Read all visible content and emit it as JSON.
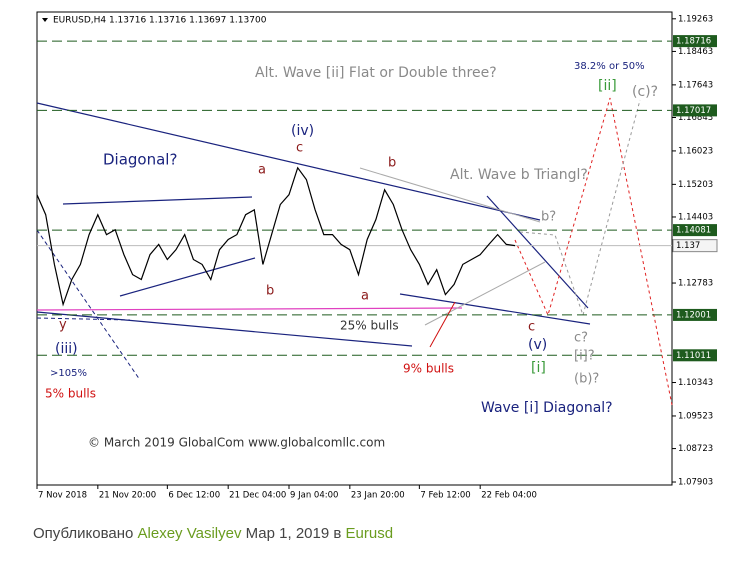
{
  "chart_data": {
    "type": "line",
    "title": "EURUSD,H4  1.13716 1.13716 1.13697 1.13700",
    "color": "#000000",
    "categories": [
      "7 Nov 2018",
      null,
      null,
      null,
      null,
      null,
      null,
      "21 Nov 20:00",
      null,
      null,
      null,
      null,
      null,
      null,
      null,
      "6 Dec 12:00",
      null,
      null,
      null,
      null,
      null,
      null,
      "21 Dec 04:00",
      null,
      null,
      null,
      null,
      null,
      null,
      "9 Jan 04:00",
      null,
      null,
      null,
      null,
      null,
      null,
      "23 Jan 20:00",
      null,
      null,
      null,
      null,
      null,
      null,
      null,
      "7 Feb 12:00",
      null,
      null,
      null,
      null,
      null,
      null,
      "22 Feb 04:00",
      null,
      null,
      null,
      null
    ],
    "values": [
      1.1495,
      1.1446,
      1.1324,
      1.1226,
      1.1287,
      1.1324,
      1.1397,
      1.1446,
      1.1397,
      1.1409,
      1.1348,
      1.1299,
      1.1287,
      1.1348,
      1.1373,
      1.1336,
      1.136,
      1.1397,
      1.1336,
      1.1324,
      1.1287,
      1.136,
      1.1385,
      1.1397,
      1.1446,
      1.1458,
      1.1324,
      1.1397,
      1.1471,
      1.1495,
      1.1561,
      1.1532,
      1.1458,
      1.1397,
      1.1397,
      1.1373,
      1.136,
      1.1299,
      1.1385,
      1.1434,
      1.1507,
      1.1471,
      1.1409,
      1.136,
      1.1324,
      1.1275,
      1.1311,
      1.125,
      1.1275,
      1.1324,
      1.1336,
      1.1348,
      1.1373,
      1.1397,
      1.1373,
      1.137
    ],
    "ylim": [
      1.0783,
      1.1943
    ],
    "yticks": [
      1.19263,
      1.18463,
      1.17643,
      1.16843,
      1.16023,
      1.15203,
      1.14403,
      1.12783,
      1.10343,
      1.09523,
      1.08723,
      1.07903
    ],
    "levels": [
      1.18716,
      1.17017,
      1.14081,
      1.12001,
      1.11011
    ],
    "level_color": "#1e5b1e",
    "last_price": 1.137,
    "annotations": [
      {
        "text": "Alt. Wave [ii] Flat or Double three?",
        "color": "#8a8a8a"
      },
      {
        "text": "38.2% or 50%",
        "color": "#1a237e"
      },
      {
        "text": "[ii]",
        "color": "#3a9a3a"
      },
      {
        "text": "(c)?",
        "color": "#8a8a8a"
      },
      {
        "text": "Diagonal?",
        "color": "#1a237e"
      },
      {
        "text": "(iv)",
        "color": "#1a237e"
      },
      {
        "text": "c",
        "color": "#8b1a1a"
      },
      {
        "text": "a",
        "color": "#8b1a1a"
      },
      {
        "text": "b",
        "color": "#8b1a1a"
      },
      {
        "text": "Alt. Wave b Triangl?",
        "color": "#8a8a8a"
      },
      {
        "text": "b?",
        "color": "#8a8a8a"
      },
      {
        "text": "b",
        "color": "#8b1a1a"
      },
      {
        "text": "a",
        "color": "#8b1a1a"
      },
      {
        "text": "25% bulls",
        "color": "#333333"
      },
      {
        "text": "y",
        "color": "#8b1a1a"
      },
      {
        "text": "(iii)",
        "color": "#1a237e"
      },
      {
        "text": ">105%",
        "color": "#1a237e"
      },
      {
        "text": "5% bulls",
        "color": "#d01010"
      },
      {
        "text": "9% bulls",
        "color": "#d01010"
      },
      {
        "text": "c",
        "color": "#8b1a1a"
      },
      {
        "text": "(v)",
        "color": "#1a237e"
      },
      {
        "text": "[i]",
        "color": "#3a9a3a"
      },
      {
        "text": "c?",
        "color": "#8a8a8a"
      },
      {
        "text": "[i]?",
        "color": "#8a8a8a"
      },
      {
        "text": "(b)?",
        "color": "#8a8a8a"
      },
      {
        "text": "Wave [i] Diagonal?",
        "color": "#1a237e"
      },
      {
        "text": "© March 2019 GlobalCom www.globalcomllc.com",
        "color": "#333333"
      }
    ]
  },
  "footer": {
    "prefix": "Опубликовано",
    "author": "Alexey Vasilyev",
    "date": "Мар 1, 2019 в",
    "symbol": "Eurusd"
  }
}
